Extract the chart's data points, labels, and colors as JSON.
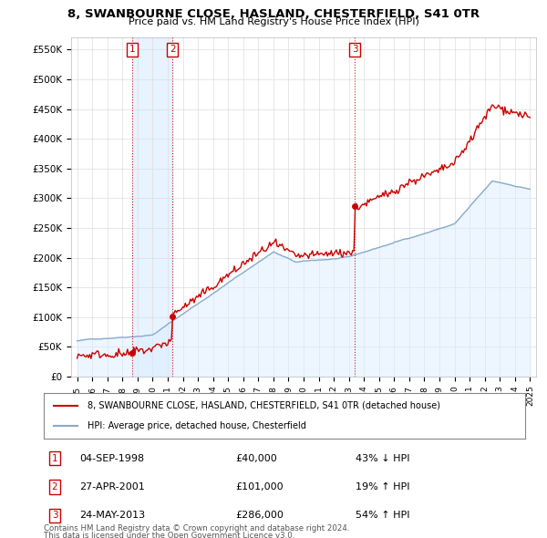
{
  "title": "8, SWANBOURNE CLOSE, HASLAND, CHESTERFIELD, S41 0TR",
  "subtitle": "Price paid vs. HM Land Registry's House Price Index (HPI)",
  "ylabel_ticks": [
    "£0",
    "£50K",
    "£100K",
    "£150K",
    "£200K",
    "£250K",
    "£300K",
    "£350K",
    "£400K",
    "£450K",
    "£500K",
    "£550K"
  ],
  "ytick_values": [
    0,
    50000,
    100000,
    150000,
    200000,
    250000,
    300000,
    350000,
    400000,
    450000,
    500000,
    550000
  ],
  "ylim": [
    0,
    570000
  ],
  "xlim_start": 1994.6,
  "xlim_end": 2025.4,
  "sale_color": "#cc0000",
  "hpi_color": "#88aacc",
  "hpi_fill_color": "#ddeeff",
  "sale_label": "8, SWANBOURNE CLOSE, HASLAND, CHESTERFIELD, S41 0TR (detached house)",
  "hpi_label": "HPI: Average price, detached house, Chesterfield",
  "transactions": [
    {
      "num": 1,
      "date": "04-SEP-1998",
      "date_x": 1998.67,
      "price": 40000,
      "pct": "43% ↓ HPI"
    },
    {
      "num": 2,
      "date": "27-APR-2001",
      "date_x": 2001.32,
      "price": 101000,
      "pct": "19% ↑ HPI"
    },
    {
      "num": 3,
      "date": "24-MAY-2013",
      "date_x": 2013.39,
      "price": 286000,
      "pct": "54% ↑ HPI"
    }
  ],
  "vline_color": "#cc0000",
  "vline_style": ":",
  "shade_color": "#ddeeff",
  "footer1": "Contains HM Land Registry data © Crown copyright and database right 2024.",
  "footer2": "This data is licensed under the Open Government Licence v3.0.",
  "background_color": "#ffffff",
  "grid_color": "#dddddd"
}
